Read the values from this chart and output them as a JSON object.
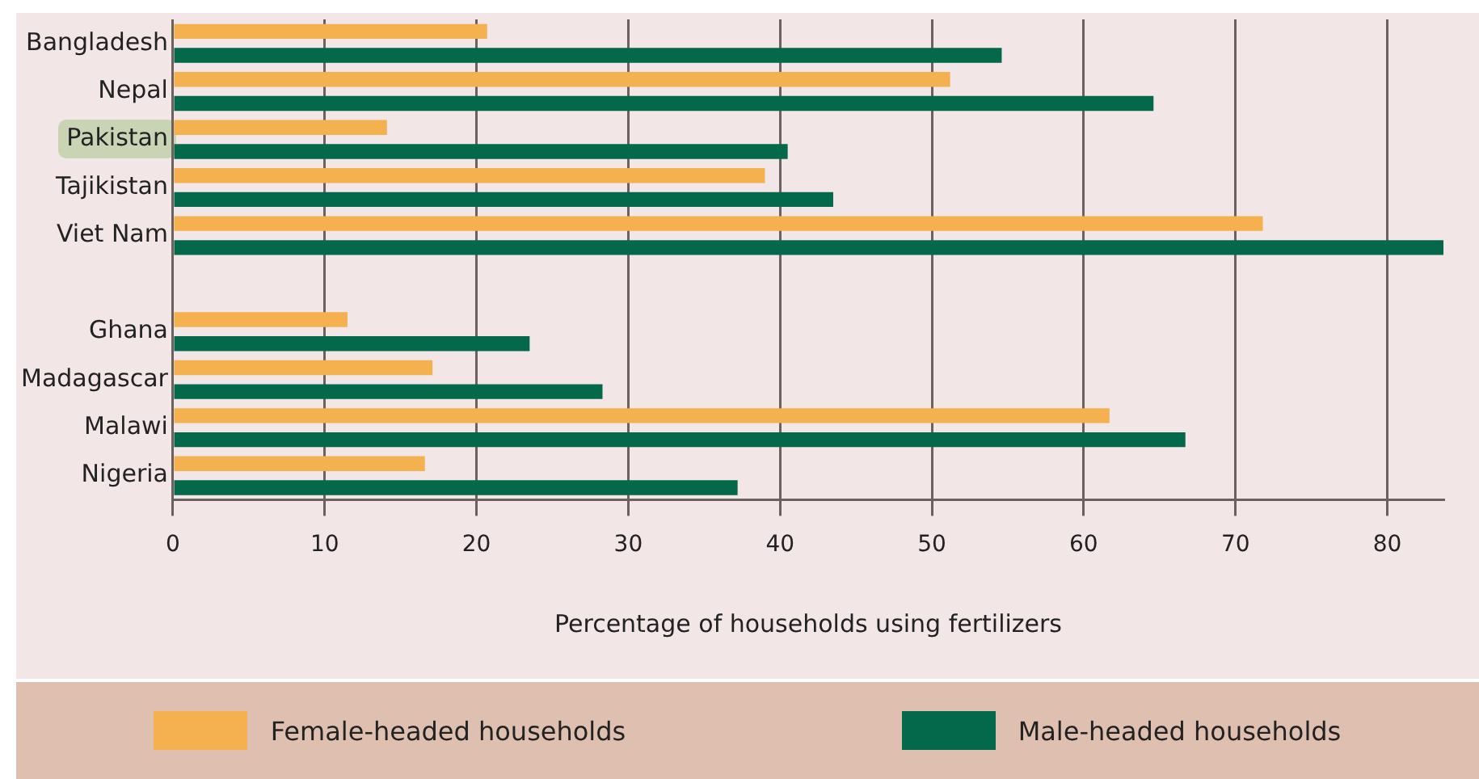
{
  "chart_data": {
    "type": "bar",
    "orientation": "horizontal",
    "xlabel": "Percentage of households using fertilizers",
    "categories": [
      "Bangladesh",
      "Nepal",
      "Pakistan",
      "Tajikistan",
      "Viet Nam",
      null,
      "Ghana",
      "Madagascar",
      "Malawi",
      "Nigeria"
    ],
    "series": [
      {
        "name": "Female-headed households",
        "color": "#f5b04f",
        "values": [
          20.7,
          51.2,
          14.1,
          39.0,
          71.8,
          null,
          11.5,
          17.1,
          61.7,
          16.6
        ]
      },
      {
        "name": "Male-headed households",
        "color": "#04694a",
        "values": [
          54.6,
          64.6,
          40.5,
          43.5,
          83.7,
          null,
          23.5,
          28.3,
          66.7,
          37.2
        ]
      }
    ],
    "xlim": [
      0,
      83.7
    ],
    "xticks": [
      0,
      10,
      20,
      30,
      40,
      50,
      60,
      70,
      80
    ],
    "grid": "x",
    "legend": "bottom"
  }
}
